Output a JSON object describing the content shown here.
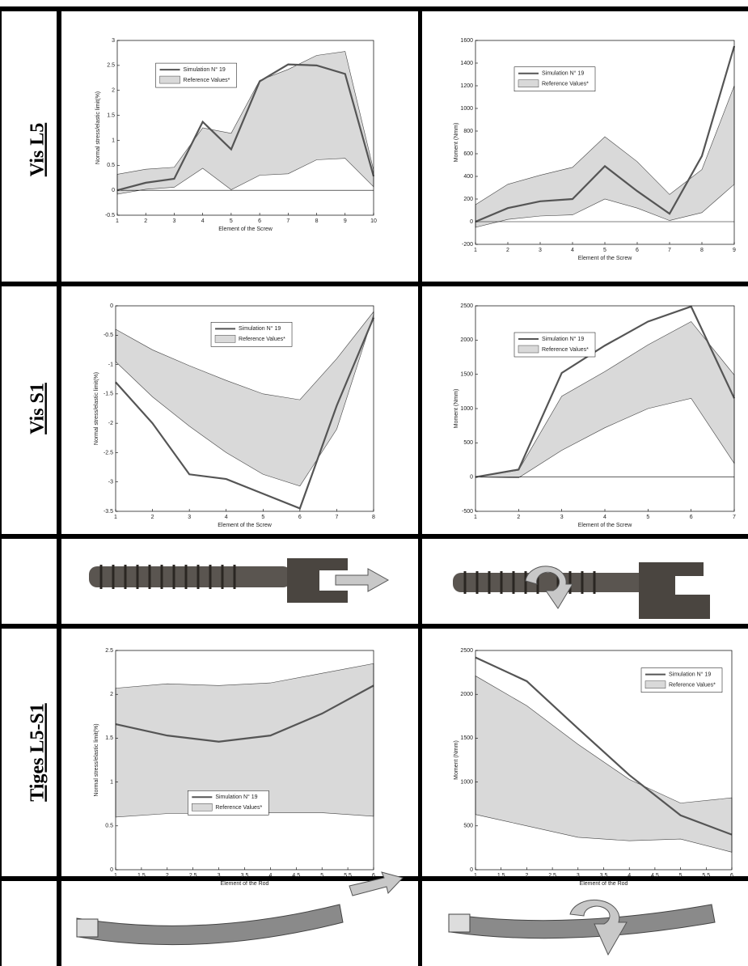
{
  "rows": [
    "Vis L5",
    "Vis S1",
    "Tiges L5-S1"
  ],
  "chart_data": [
    {
      "type": "line",
      "xlabel": "Element of the Screw",
      "ylabel": "Normal stress/elastic limit(%)",
      "x": [
        1,
        2,
        3,
        4,
        5,
        6,
        7,
        8,
        9,
        10
      ],
      "xlim": [
        1,
        10
      ],
      "xticks": [
        1,
        2,
        3,
        4,
        5,
        6,
        7,
        8,
        9,
        10
      ],
      "ylim": [
        -0.5,
        3
      ],
      "yticks": [
        -0.5,
        0,
        0.5,
        1,
        1.5,
        2,
        2.5,
        3
      ],
      "legend": "upper left",
      "series": [
        {
          "name": "Simulation N° 19",
          "color": "#555555",
          "values": [
            0,
            0.15,
            0.23,
            1.37,
            0.82,
            2.18,
            2.52,
            2.5,
            2.33,
            0.28
          ]
        },
        {
          "name": "Reference Values*",
          "color": "#d9d9d9",
          "upper": [
            0.32,
            0.42,
            0.46,
            1.25,
            1.14,
            2.2,
            2.42,
            2.7,
            2.78,
            0.4
          ],
          "lower": [
            -0.08,
            0.02,
            0.06,
            0.44,
            0.01,
            0.3,
            0.33,
            0.61,
            0.64,
            0.07
          ]
        }
      ]
    },
    {
      "type": "line",
      "xlabel": "Element of the Screw",
      "ylabel": "Moment (Nmm)",
      "x": [
        1,
        2,
        3,
        4,
        5,
        6,
        7,
        8,
        9
      ],
      "xlim": [
        1,
        9
      ],
      "xticks": [
        1,
        2,
        3,
        4,
        5,
        6,
        7,
        8,
        9
      ],
      "ylim": [
        -200,
        1600
      ],
      "yticks": [
        -200,
        0,
        200,
        400,
        600,
        800,
        1000,
        1200,
        1400,
        1600
      ],
      "legend": "upper left",
      "series": [
        {
          "name": "Simulation N° 19",
          "color": "#555555",
          "values": [
            0,
            120,
            180,
            200,
            490,
            270,
            70,
            580,
            1550
          ]
        },
        {
          "name": "Reference Values*",
          "color": "#d9d9d9",
          "upper": [
            150,
            330,
            410,
            480,
            750,
            530,
            240,
            460,
            1200
          ],
          "lower": [
            -50,
            20,
            50,
            60,
            200,
            120,
            10,
            80,
            330
          ]
        }
      ]
    },
    {
      "type": "line",
      "xlabel": "Element of the Screw",
      "ylabel": "Normal stress/elastic limit(%)",
      "x": [
        1,
        2,
        3,
        4,
        5,
        6,
        7,
        8
      ],
      "xlim": [
        1,
        8
      ],
      "xticks": [
        1,
        2,
        3,
        4,
        5,
        6,
        7,
        8
      ],
      "ylim": [
        -3.5,
        0
      ],
      "yticks": [
        -3.5,
        -3,
        -2.5,
        -2,
        -1.5,
        -1,
        -0.5,
        0
      ],
      "legend": "upper center",
      "series": [
        {
          "name": "Simulation N° 19",
          "color": "#555555",
          "values": [
            -1.3,
            -2.0,
            -2.87,
            -2.95,
            -3.2,
            -3.45,
            -1.7,
            -0.2
          ]
        },
        {
          "name": "Reference Values*",
          "color": "#d9d9d9",
          "upper": [
            -0.4,
            -0.75,
            -1.02,
            -1.27,
            -1.5,
            -1.6,
            -0.9,
            -0.1
          ],
          "lower": [
            -0.95,
            -1.55,
            -2.05,
            -2.5,
            -2.87,
            -3.07,
            -2.1,
            -0.15
          ]
        }
      ]
    },
    {
      "type": "line",
      "xlabel": "Element of the Screw",
      "ylabel": "Moment (Nmm)",
      "x": [
        1,
        2,
        3,
        4,
        5,
        6,
        7
      ],
      "xlim": [
        1,
        7
      ],
      "xticks": [
        1,
        2,
        3,
        4,
        5,
        6,
        7
      ],
      "ylim": [
        -500,
        2500
      ],
      "yticks": [
        -500,
        0,
        500,
        1000,
        1500,
        2000,
        2500
      ],
      "legend": "upper left",
      "series": [
        {
          "name": "Simulation N° 19",
          "color": "#555555",
          "values": [
            0,
            110,
            1520,
            1920,
            2270,
            2490,
            1150
          ]
        },
        {
          "name": "Reference Values*",
          "color": "#d9d9d9",
          "upper": [
            0,
            100,
            1180,
            1540,
            1930,
            2270,
            1490
          ],
          "lower": [
            0,
            -10,
            390,
            720,
            1000,
            1150,
            200
          ]
        }
      ]
    },
    {
      "type": "line",
      "xlabel": "Element of the Rod",
      "ylabel": "Normal stress/elastic limit(%)",
      "x": [
        1,
        2,
        3,
        4,
        5,
        6
      ],
      "xlim": [
        1,
        6
      ],
      "xticks": [
        1,
        1.5,
        2,
        2.5,
        3,
        3.5,
        4,
        4.5,
        5,
        5.5,
        6
      ],
      "ylim": [
        0,
        2.5
      ],
      "yticks": [
        0,
        0.5,
        1,
        1.5,
        2,
        2.5
      ],
      "legend": "lower center",
      "series": [
        {
          "name": "Simulation N° 19",
          "color": "#555555",
          "values": [
            1.66,
            1.53,
            1.46,
            1.53,
            1.78,
            2.1
          ]
        },
        {
          "name": "Reference Values*",
          "color": "#d9d9d9",
          "upper": [
            2.07,
            2.12,
            2.1,
            2.13,
            2.24,
            2.35
          ],
          "lower": [
            0.6,
            0.64,
            0.64,
            0.65,
            0.65,
            0.61
          ]
        }
      ]
    },
    {
      "type": "line",
      "xlabel": "Element of the Rod",
      "ylabel": "Moment (Nmm)",
      "x": [
        1,
        2,
        3,
        4,
        5,
        6
      ],
      "xlim": [
        1,
        6
      ],
      "xticks": [
        1,
        1.5,
        2,
        2.5,
        3,
        3.5,
        4,
        4.5,
        5,
        5.5,
        6
      ],
      "ylim": [
        0,
        2500
      ],
      "yticks": [
        0,
        500,
        1000,
        1500,
        2000,
        2500
      ],
      "legend": "upper right",
      "series": [
        {
          "name": "Simulation N° 19",
          "color": "#555555",
          "values": [
            2420,
            2150,
            1610,
            1080,
            620,
            400
          ]
        },
        {
          "name": "Reference Values*",
          "color": "#d9d9d9",
          "upper": [
            2210,
            1870,
            1430,
            1030,
            760,
            820
          ],
          "lower": [
            630,
            500,
            370,
            330,
            350,
            200
          ]
        }
      ]
    }
  ]
}
